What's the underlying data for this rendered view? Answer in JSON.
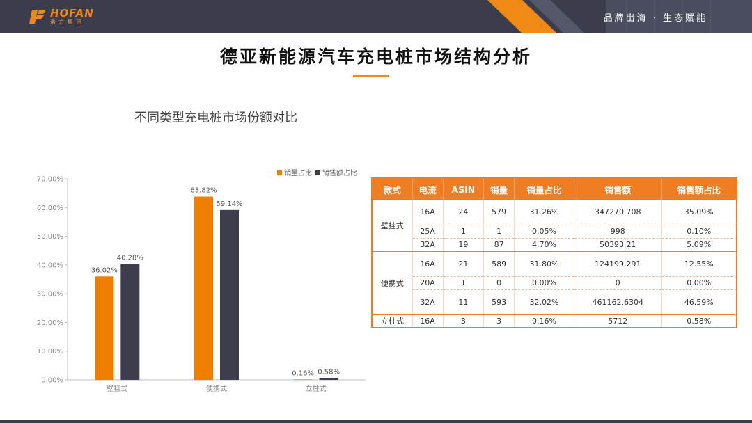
{
  "header": {
    "logo_main": "HOFAN",
    "logo_sub": "浩方集团",
    "slogan": "品牌出海 · 生态赋能"
  },
  "page": {
    "title": "德亚新能源汽车充电桩市场结构分析",
    "subtitle": "不同类型充电桩市场份额对比"
  },
  "colors": {
    "accent": "#ee7d23",
    "series_1": "#ee7d00",
    "series_2": "#3d3d4e",
    "header_bg": "#3b3d4d"
  },
  "chart_data": {
    "type": "bar",
    "categories": [
      "壁挂式",
      "便携式",
      "立柱式"
    ],
    "series": [
      {
        "name": "销量占比",
        "values": [
          36.02,
          63.82,
          0.16
        ],
        "labels": [
          "36.02%",
          "63.82%",
          "0.16%"
        ]
      },
      {
        "name": "销售额占比",
        "values": [
          40.28,
          59.14,
          0.58
        ],
        "labels": [
          "40.28%",
          "59.14%",
          "0.58%"
        ]
      }
    ],
    "ylim": [
      0,
      70
    ],
    "yticks": [
      "0.00%",
      "10.00%",
      "20.00%",
      "30.00%",
      "40.00%",
      "50.00%",
      "60.00%",
      "70.00%"
    ],
    "legend_position": "top-right",
    "grid": false
  },
  "table": {
    "headers": [
      "款式",
      "电流",
      "ASIN",
      "销量",
      "销量占比",
      "销售额",
      "销售额占比"
    ],
    "groups": [
      {
        "style": "壁挂式",
        "rows": [
          [
            "16A",
            "24",
            "579",
            "31.26%",
            "347270.708",
            "35.09%"
          ],
          [
            "25A",
            "1",
            "1",
            "0.05%",
            "998",
            "0.10%"
          ],
          [
            "32A",
            "19",
            "87",
            "4.70%",
            "50393.21",
            "5.09%"
          ]
        ]
      },
      {
        "style": "便携式",
        "rows": [
          [
            "16A",
            "21",
            "589",
            "31.80%",
            "124199.291",
            "12.55%"
          ],
          [
            "20A",
            "1",
            "0",
            "0.00%",
            "0",
            "0.00%"
          ],
          [
            "32A",
            "11",
            "593",
            "32.02%",
            "461162.6304",
            "46.59%"
          ]
        ]
      },
      {
        "style": "立柱式",
        "rows": [
          [
            "16A",
            "3",
            "3",
            "0.16%",
            "5712",
            "0.58%"
          ]
        ]
      }
    ]
  }
}
